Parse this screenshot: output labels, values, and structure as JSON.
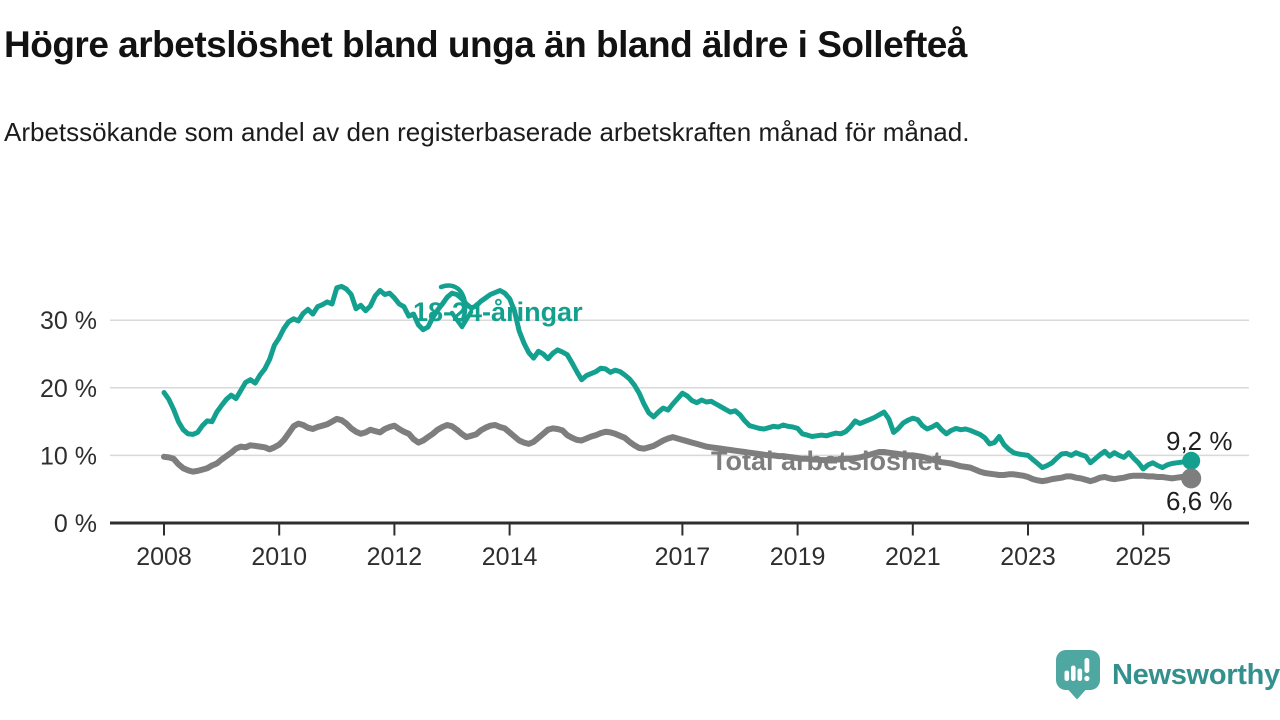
{
  "header": {
    "title": "Högre arbetslöshet bland unga än bland äldre i Sollefteå",
    "subtitle": "Arbetssökande som andel av den registerbaserade arbetskraften månad för månad."
  },
  "branding": {
    "logo_text": "Newsworthy",
    "logo_icon": "newsworthy-speech-bubble-bar-chart-icon",
    "logo_icon_color": "#4ea7a1",
    "logo_text_color": "#33908d"
  },
  "chart_data": {
    "type": "line",
    "title": "Högre arbetslöshet bland unga än bland äldre i Sollefteå",
    "xlabel": "",
    "ylabel": "",
    "x_unit": "month",
    "x_start": "2008-01",
    "x_end": "2025-11",
    "ylim": [
      0,
      36
    ],
    "grid": "horizontal",
    "x_ticks": [
      2008,
      2010,
      2012,
      2014,
      2017,
      2019,
      2021,
      2023,
      2025
    ],
    "x_tick_labels": [
      "2008",
      "2010",
      "2012",
      "2014",
      "2017",
      "2019",
      "2021",
      "2023",
      "2025"
    ],
    "y_ticks": [
      0,
      10,
      20,
      30
    ],
    "y_tick_labels": [
      "0 %",
      "10 %",
      "20 %",
      "30 %"
    ],
    "axis_color": "#2e2e2e",
    "grid_color": "#d9d9d9",
    "series": [
      {
        "name": "18-24-åringar",
        "color": "#14a08f",
        "stroke_width": 5,
        "end_dot_radius": 9,
        "end_label": "9,2 %",
        "end_value": 9.2,
        "values": [
          19.3,
          18.3,
          16.8,
          15.0,
          13.8,
          13.2,
          13.1,
          13.4,
          14.4,
          15.1,
          15.0,
          16.4,
          17.4,
          18.3,
          18.9,
          18.4,
          19.6,
          20.8,
          21.2,
          20.7,
          21.9,
          22.8,
          24.2,
          26.3,
          27.4,
          28.8,
          29.8,
          30.2,
          29.9,
          31.0,
          31.6,
          30.9,
          32.0,
          32.3,
          32.7,
          32.4,
          34.8,
          35.0,
          34.6,
          33.8,
          31.7,
          32.2,
          31.4,
          32.1,
          33.6,
          34.4,
          33.8,
          34.0,
          33.3,
          32.4,
          32.0,
          30.6,
          30.9,
          29.3,
          28.6,
          29.0,
          30.4,
          31.5,
          32.4,
          33.4,
          34.0,
          33.8,
          33.2,
          32.4,
          31.8,
          32.1,
          32.8,
          33.3,
          33.8,
          34.1,
          34.4,
          34.0,
          33.2,
          31.4,
          28.4,
          26.6,
          25.2,
          24.4,
          25.4,
          25.0,
          24.3,
          25.1,
          25.6,
          25.3,
          24.9,
          23.7,
          22.4,
          21.2,
          21.8,
          22.1,
          22.4,
          22.9,
          22.8,
          22.3,
          22.6,
          22.4,
          21.9,
          21.3,
          20.4,
          19.2,
          17.6,
          16.3,
          15.7,
          16.4,
          17.0,
          16.7,
          17.6,
          18.4,
          19.2,
          18.8,
          18.1,
          17.8,
          18.2,
          17.9,
          18.0,
          17.6,
          17.2,
          16.8,
          16.4,
          16.6,
          16.0,
          15.1,
          14.4,
          14.2,
          14.0,
          13.9,
          14.1,
          14.3,
          14.2,
          14.5,
          14.3,
          14.2,
          14.0,
          13.2,
          13.0,
          12.8,
          12.9,
          13.0,
          12.9,
          13.1,
          13.3,
          13.2,
          13.5,
          14.2,
          15.1,
          14.7,
          15.0,
          15.3,
          15.6,
          16.0,
          16.4,
          15.4,
          13.4,
          14.0,
          14.8,
          15.2,
          15.5,
          15.3,
          14.4,
          13.9,
          14.2,
          14.6,
          13.8,
          13.2,
          13.7,
          14.0,
          13.8,
          13.9,
          13.7,
          13.4,
          13.1,
          12.6,
          11.7,
          11.9,
          12.8,
          11.6,
          10.9,
          10.4,
          10.2,
          10.1,
          10.0,
          9.4,
          8.8,
          8.2,
          8.5,
          8.9,
          9.6,
          10.2,
          10.3,
          10.0,
          10.4,
          10.1,
          9.9,
          8.9,
          9.5,
          10.1,
          10.6,
          9.9,
          10.4,
          10.0,
          9.7,
          10.4,
          9.6,
          8.9,
          8.0,
          8.6,
          8.9,
          8.5,
          8.2,
          8.6,
          8.8,
          8.9,
          9.0,
          9.1,
          9.2
        ]
      },
      {
        "name": "Total arbetslöshet",
        "color": "#7e7e7e",
        "stroke_width": 6,
        "end_dot_radius": 10,
        "end_label": "6,6 %",
        "end_value": 6.6,
        "values": [
          9.8,
          9.7,
          9.5,
          8.7,
          8.1,
          7.8,
          7.6,
          7.7,
          7.9,
          8.1,
          8.5,
          8.8,
          9.4,
          9.9,
          10.4,
          11.0,
          11.3,
          11.2,
          11.5,
          11.4,
          11.3,
          11.2,
          10.9,
          11.2,
          11.6,
          12.3,
          13.3,
          14.3,
          14.7,
          14.5,
          14.1,
          13.9,
          14.2,
          14.4,
          14.6,
          15.0,
          15.4,
          15.2,
          14.7,
          14.0,
          13.5,
          13.2,
          13.4,
          13.8,
          13.6,
          13.4,
          13.9,
          14.2,
          14.4,
          13.9,
          13.5,
          13.2,
          12.4,
          11.9,
          12.2,
          12.7,
          13.2,
          13.8,
          14.2,
          14.5,
          14.3,
          13.8,
          13.2,
          12.7,
          12.9,
          13.1,
          13.7,
          14.1,
          14.4,
          14.5,
          14.2,
          14.0,
          13.4,
          12.8,
          12.2,
          11.9,
          11.7,
          12.0,
          12.6,
          13.2,
          13.8,
          14.0,
          13.9,
          13.7,
          13.0,
          12.6,
          12.3,
          12.2,
          12.5,
          12.8,
          13.0,
          13.3,
          13.5,
          13.4,
          13.2,
          12.9,
          12.6,
          12.0,
          11.5,
          11.1,
          11.0,
          11.2,
          11.4,
          11.8,
          12.2,
          12.5,
          12.7,
          12.5,
          12.3,
          12.1,
          11.9,
          11.7,
          11.5,
          11.3,
          11.2,
          11.1,
          11.0,
          10.9,
          10.8,
          10.7,
          10.6,
          10.5,
          10.4,
          10.3,
          10.2,
          10.1,
          10.0,
          10.0,
          9.9,
          9.9,
          9.8,
          9.7,
          9.6,
          9.5,
          9.5,
          9.4,
          9.4,
          9.3,
          9.3,
          9.3,
          9.4,
          9.4,
          9.5,
          9.5,
          9.6,
          9.7,
          9.9,
          10.1,
          10.3,
          10.5,
          10.5,
          10.4,
          10.3,
          10.2,
          10.1,
          10.0,
          10.0,
          9.9,
          9.8,
          9.6,
          9.4,
          9.2,
          9.0,
          8.9,
          8.8,
          8.6,
          8.4,
          8.3,
          8.2,
          7.9,
          7.6,
          7.4,
          7.3,
          7.2,
          7.1,
          7.1,
          7.2,
          7.2,
          7.1,
          7.0,
          6.8,
          6.5,
          6.3,
          6.2,
          6.3,
          6.5,
          6.6,
          6.7,
          6.9,
          6.9,
          6.7,
          6.6,
          6.4,
          6.2,
          6.4,
          6.7,
          6.8,
          6.6,
          6.5,
          6.6,
          6.7,
          6.9,
          7.0,
          7.0,
          7.0,
          6.9,
          6.9,
          6.8,
          6.8,
          6.7,
          6.6,
          6.7,
          6.8,
          6.7,
          6.6
        ]
      }
    ]
  }
}
